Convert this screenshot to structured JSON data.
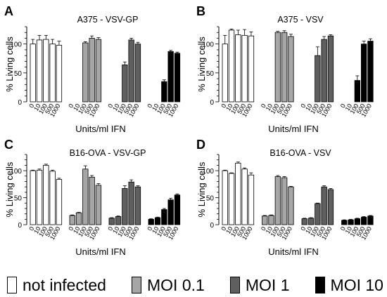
{
  "chart_data": [
    {
      "panel": "A",
      "type": "bar",
      "title": "A375 - VSV-GP",
      "ylabel": "% Living cells",
      "xlabel": "Units/ml IFN",
      "ylim": [
        0,
        130
      ],
      "yticks": [
        0,
        50,
        100
      ],
      "grid": false,
      "categories": [
        "0",
        "10",
        "100",
        "500",
        "1000"
      ],
      "series": [
        {
          "name": "not infected",
          "values": [
            100,
            107,
            108,
            100,
            98
          ],
          "errors": [
            8,
            8,
            7,
            8,
            7
          ]
        },
        {
          "name": "MOI 0.1",
          "values": [
            0,
            0,
            102,
            110,
            108
          ],
          "errors": [
            0,
            0,
            2,
            4,
            3
          ]
        },
        {
          "name": "MOI 1",
          "values": [
            0,
            0,
            64,
            107,
            100
          ],
          "errors": [
            0,
            0,
            5,
            3,
            3
          ]
        },
        {
          "name": "MOI 10",
          "values": [
            0,
            0,
            35,
            87,
            84
          ],
          "errors": [
            0,
            0,
            3,
            2,
            2
          ]
        }
      ]
    },
    {
      "panel": "B",
      "type": "bar",
      "title": "A375 - VSV",
      "ylabel": "% Living cells",
      "xlabel": "Units/ml IFN",
      "ylim": [
        0,
        130
      ],
      "yticks": [
        0,
        50,
        100
      ],
      "grid": false,
      "categories": [
        "0",
        "10",
        "100",
        "500",
        "1000"
      ],
      "series": [
        {
          "name": "not infected",
          "values": [
            100,
            124,
            116,
            115,
            114
          ],
          "errors": [
            15,
            2,
            8,
            10,
            7
          ]
        },
        {
          "name": "MOI 0.1",
          "values": [
            0,
            0,
            120,
            120,
            113
          ],
          "errors": [
            0,
            0,
            2,
            3,
            4
          ]
        },
        {
          "name": "MOI 1",
          "values": [
            0,
            0,
            80,
            108,
            114
          ],
          "errors": [
            0,
            0,
            15,
            5,
            2
          ]
        },
        {
          "name": "MOI 10",
          "values": [
            0,
            0,
            37,
            100,
            105
          ],
          "errors": [
            0,
            0,
            8,
            5,
            4
          ]
        }
      ]
    },
    {
      "panel": "C",
      "type": "bar",
      "title": "B16-OVA - VSV-GP",
      "ylabel": "% Living cells",
      "xlabel": "Units/ml IFN",
      "ylim": [
        0,
        130
      ],
      "yticks": [
        0,
        50,
        100
      ],
      "grid": false,
      "categories": [
        "0",
        "10",
        "100",
        "500",
        "1000"
      ],
      "series": [
        {
          "name": "not infected",
          "values": [
            100,
            101,
            110,
            99,
            84
          ],
          "errors": [
            1,
            2,
            2,
            2,
            2
          ]
        },
        {
          "name": "MOI 0.1",
          "values": [
            17,
            22,
            103,
            88,
            73
          ],
          "errors": [
            1,
            1,
            6,
            3,
            3
          ]
        },
        {
          "name": "MOI 1",
          "values": [
            12,
            15,
            67,
            79,
            70
          ],
          "errors": [
            1,
            1,
            5,
            4,
            2
          ]
        },
        {
          "name": "MOI 10",
          "values": [
            10,
            13,
            28,
            46,
            55
          ],
          "errors": [
            1,
            1,
            2,
            3,
            2
          ]
        }
      ]
    },
    {
      "panel": "D",
      "type": "bar",
      "title": "B16-OVA - VSV",
      "ylabel": "% Living cells",
      "xlabel": "Units/ml IFN",
      "ylim": [
        0,
        130
      ],
      "yticks": [
        0,
        50,
        100
      ],
      "grid": false,
      "categories": [
        "0",
        "10",
        "100",
        "500",
        "1000"
      ],
      "series": [
        {
          "name": "not infected",
          "values": [
            100,
            95,
            114,
            103,
            92
          ],
          "errors": [
            1,
            1,
            2,
            2,
            4
          ]
        },
        {
          "name": "MOI 0.1",
          "values": [
            16,
            17,
            89,
            87,
            70
          ],
          "errors": [
            1,
            1,
            2,
            2,
            1
          ]
        },
        {
          "name": "MOI 1",
          "values": [
            11,
            12,
            39,
            70,
            65
          ],
          "errors": [
            1,
            1,
            1,
            2,
            2
          ]
        },
        {
          "name": "MOI 10",
          "values": [
            8,
            9,
            11,
            14,
            16
          ],
          "errors": [
            1,
            1,
            1,
            1,
            1
          ]
        }
      ]
    }
  ],
  "legend": [
    {
      "label": "not infected",
      "color": "#ffffff"
    },
    {
      "label": "MOI 0.1",
      "color": "#a6a6a6"
    },
    {
      "label": "MOI 1",
      "color": "#5f5f5f"
    },
    {
      "label": "MOI 10",
      "color": "#000000"
    }
  ]
}
